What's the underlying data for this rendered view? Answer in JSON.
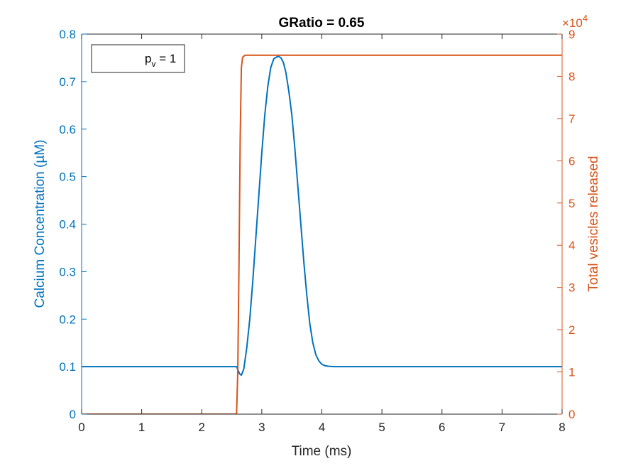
{
  "chart_data": {
    "type": "line",
    "title": "GRatio = 0.65",
    "xlabel": "Time (ms)",
    "ylabel_left": "Calcium Concentration (µM)",
    "ylabel_right": "Total vesicles released",
    "right_exponent": "×10",
    "right_exponent_power": "4",
    "xlim": [
      0,
      8
    ],
    "ylim_left": [
      0,
      0.8
    ],
    "ylim_right": [
      0,
      9
    ],
    "x_ticks": [
      "0",
      "1",
      "2",
      "3",
      "4",
      "5",
      "6",
      "7",
      "8"
    ],
    "y_left_ticks": [
      "0",
      "0.1",
      "0.2",
      "0.3",
      "0.4",
      "0.5",
      "0.6",
      "0.7",
      "0.8"
    ],
    "y_right_ticks": [
      "0",
      "1",
      "2",
      "3",
      "4",
      "5",
      "6",
      "7",
      "8",
      "9"
    ],
    "legend": {
      "base": "p",
      "sub": "v",
      "rest": " = 1",
      "position": "top-left"
    },
    "colors": {
      "left_axis": "#0072BD",
      "right_axis": "#D95319",
      "axes": "#262626"
    },
    "series": [
      {
        "axis": "left",
        "color": "#0072BD",
        "x": [
          0,
          1,
          2,
          2.5,
          2.58,
          2.63,
          2.66,
          2.7,
          2.75,
          2.8,
          2.85,
          2.9,
          2.95,
          3.0,
          3.05,
          3.1,
          3.15,
          3.2,
          3.25,
          3.28,
          3.32,
          3.36,
          3.4,
          3.45,
          3.5,
          3.55,
          3.6,
          3.65,
          3.7,
          3.75,
          3.8,
          3.85,
          3.9,
          3.95,
          4.0,
          4.05,
          4.1,
          4.2,
          4.4,
          5,
          6,
          7,
          8
        ],
        "y": [
          0.1,
          0.1,
          0.1,
          0.1,
          0.1,
          0.085,
          0.082,
          0.095,
          0.14,
          0.2,
          0.28,
          0.37,
          0.46,
          0.55,
          0.63,
          0.69,
          0.73,
          0.748,
          0.752,
          0.753,
          0.75,
          0.74,
          0.72,
          0.68,
          0.63,
          0.56,
          0.48,
          0.4,
          0.32,
          0.25,
          0.19,
          0.15,
          0.125,
          0.112,
          0.105,
          0.102,
          0.101,
          0.1,
          0.1,
          0.1,
          0.1,
          0.1,
          0.1
        ]
      },
      {
        "axis": "right",
        "color": "#D95319",
        "x": [
          0,
          1,
          2,
          2.5,
          2.58,
          2.6,
          2.62,
          2.64,
          2.66,
          2.68,
          2.72,
          3,
          4,
          5,
          6,
          7,
          8
        ],
        "y": [
          0,
          0,
          0,
          0,
          0,
          1.0,
          3.5,
          6.5,
          8.2,
          8.45,
          8.5,
          8.5,
          8.5,
          8.5,
          8.5,
          8.5,
          8.5
        ]
      }
    ]
  }
}
